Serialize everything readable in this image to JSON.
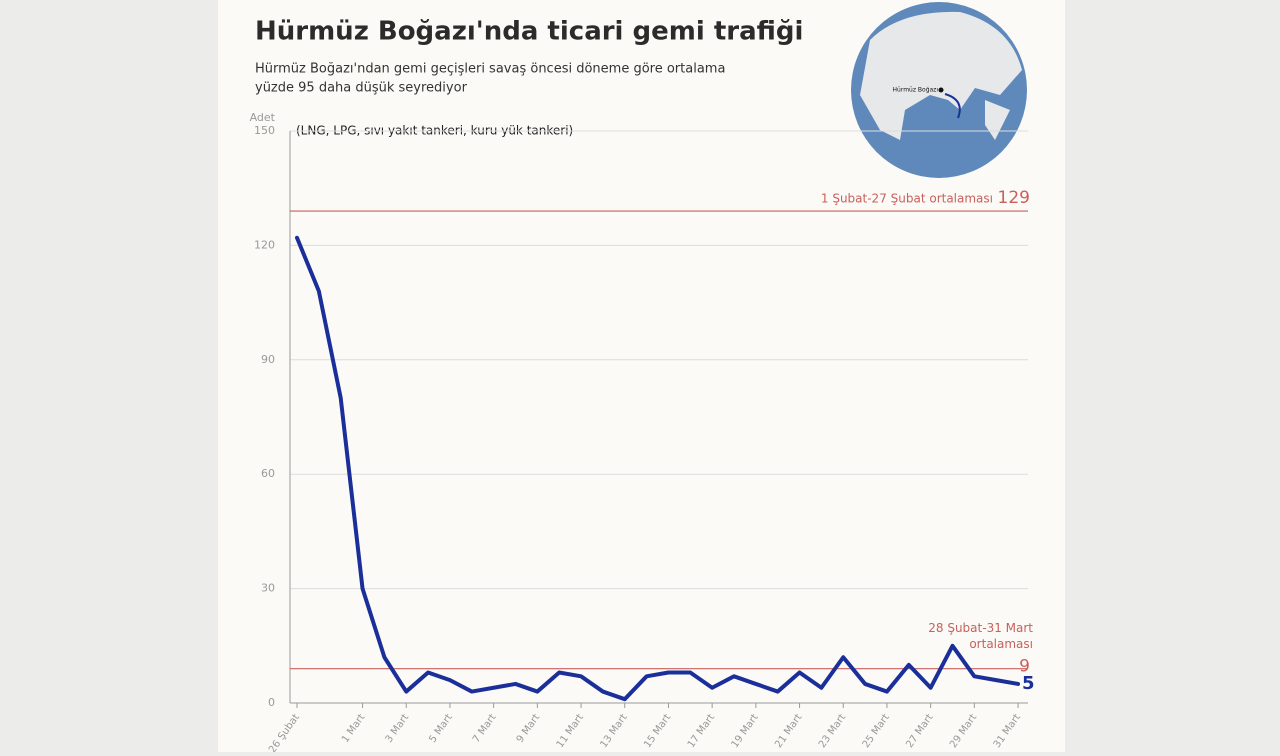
{
  "chart_data": {
    "type": "line",
    "title": "Hürmüz Boğazı'nda ticari gemi trafiği",
    "subtitle": [
      "Hürmüz Boğazı'ndan gemi geçişleri savaş öncesi döneme göre ortalama",
      "yüzde 95 daha düşük seyrediyor"
    ],
    "y_label": "Adet",
    "annotation": "(LNG, LPG, sıvı yakıt tankeri, kuru yük tankeri)",
    "inset_label": "Hürmüz Boğazı",
    "categories": [
      "26 Şubat",
      null,
      null,
      "1 Mart",
      null,
      "3 Mart",
      null,
      "5 Mart",
      null,
      "7 Mart",
      null,
      "9 Mart",
      null,
      "11 Mart",
      null,
      "13 Mart",
      null,
      "15 Mart",
      null,
      "17 Mart",
      null,
      "19 Mart",
      null,
      "21 Mart",
      null,
      "23 Mart",
      null,
      "25 Mart",
      null,
      "27 Mart",
      null,
      "29 Mart",
      null,
      "31 Mart"
    ],
    "series": [
      {
        "color": "#1b2f9a",
        "values": [
          122,
          108,
          80,
          30,
          12,
          3,
          8,
          6,
          3,
          4,
          5,
          3,
          8,
          7,
          3,
          1,
          7,
          8,
          8,
          4,
          7,
          5,
          3,
          8,
          4,
          12,
          5,
          3,
          10,
          4,
          15,
          7,
          6,
          5
        ]
      }
    ],
    "reference_lines": [
      {
        "value": 129,
        "label": [
          "1 Şubat-27 Şubat ortalaması"
        ],
        "color": "#c9605c"
      },
      {
        "value": 9,
        "label": [
          "28 Şubat-31 Mart",
          "ortalaması"
        ],
        "color": "#c9605c"
      }
    ],
    "ylim": [
      0,
      150
    ],
    "yticks": [
      0,
      30,
      60,
      90,
      120,
      150
    ],
    "grid": true
  }
}
